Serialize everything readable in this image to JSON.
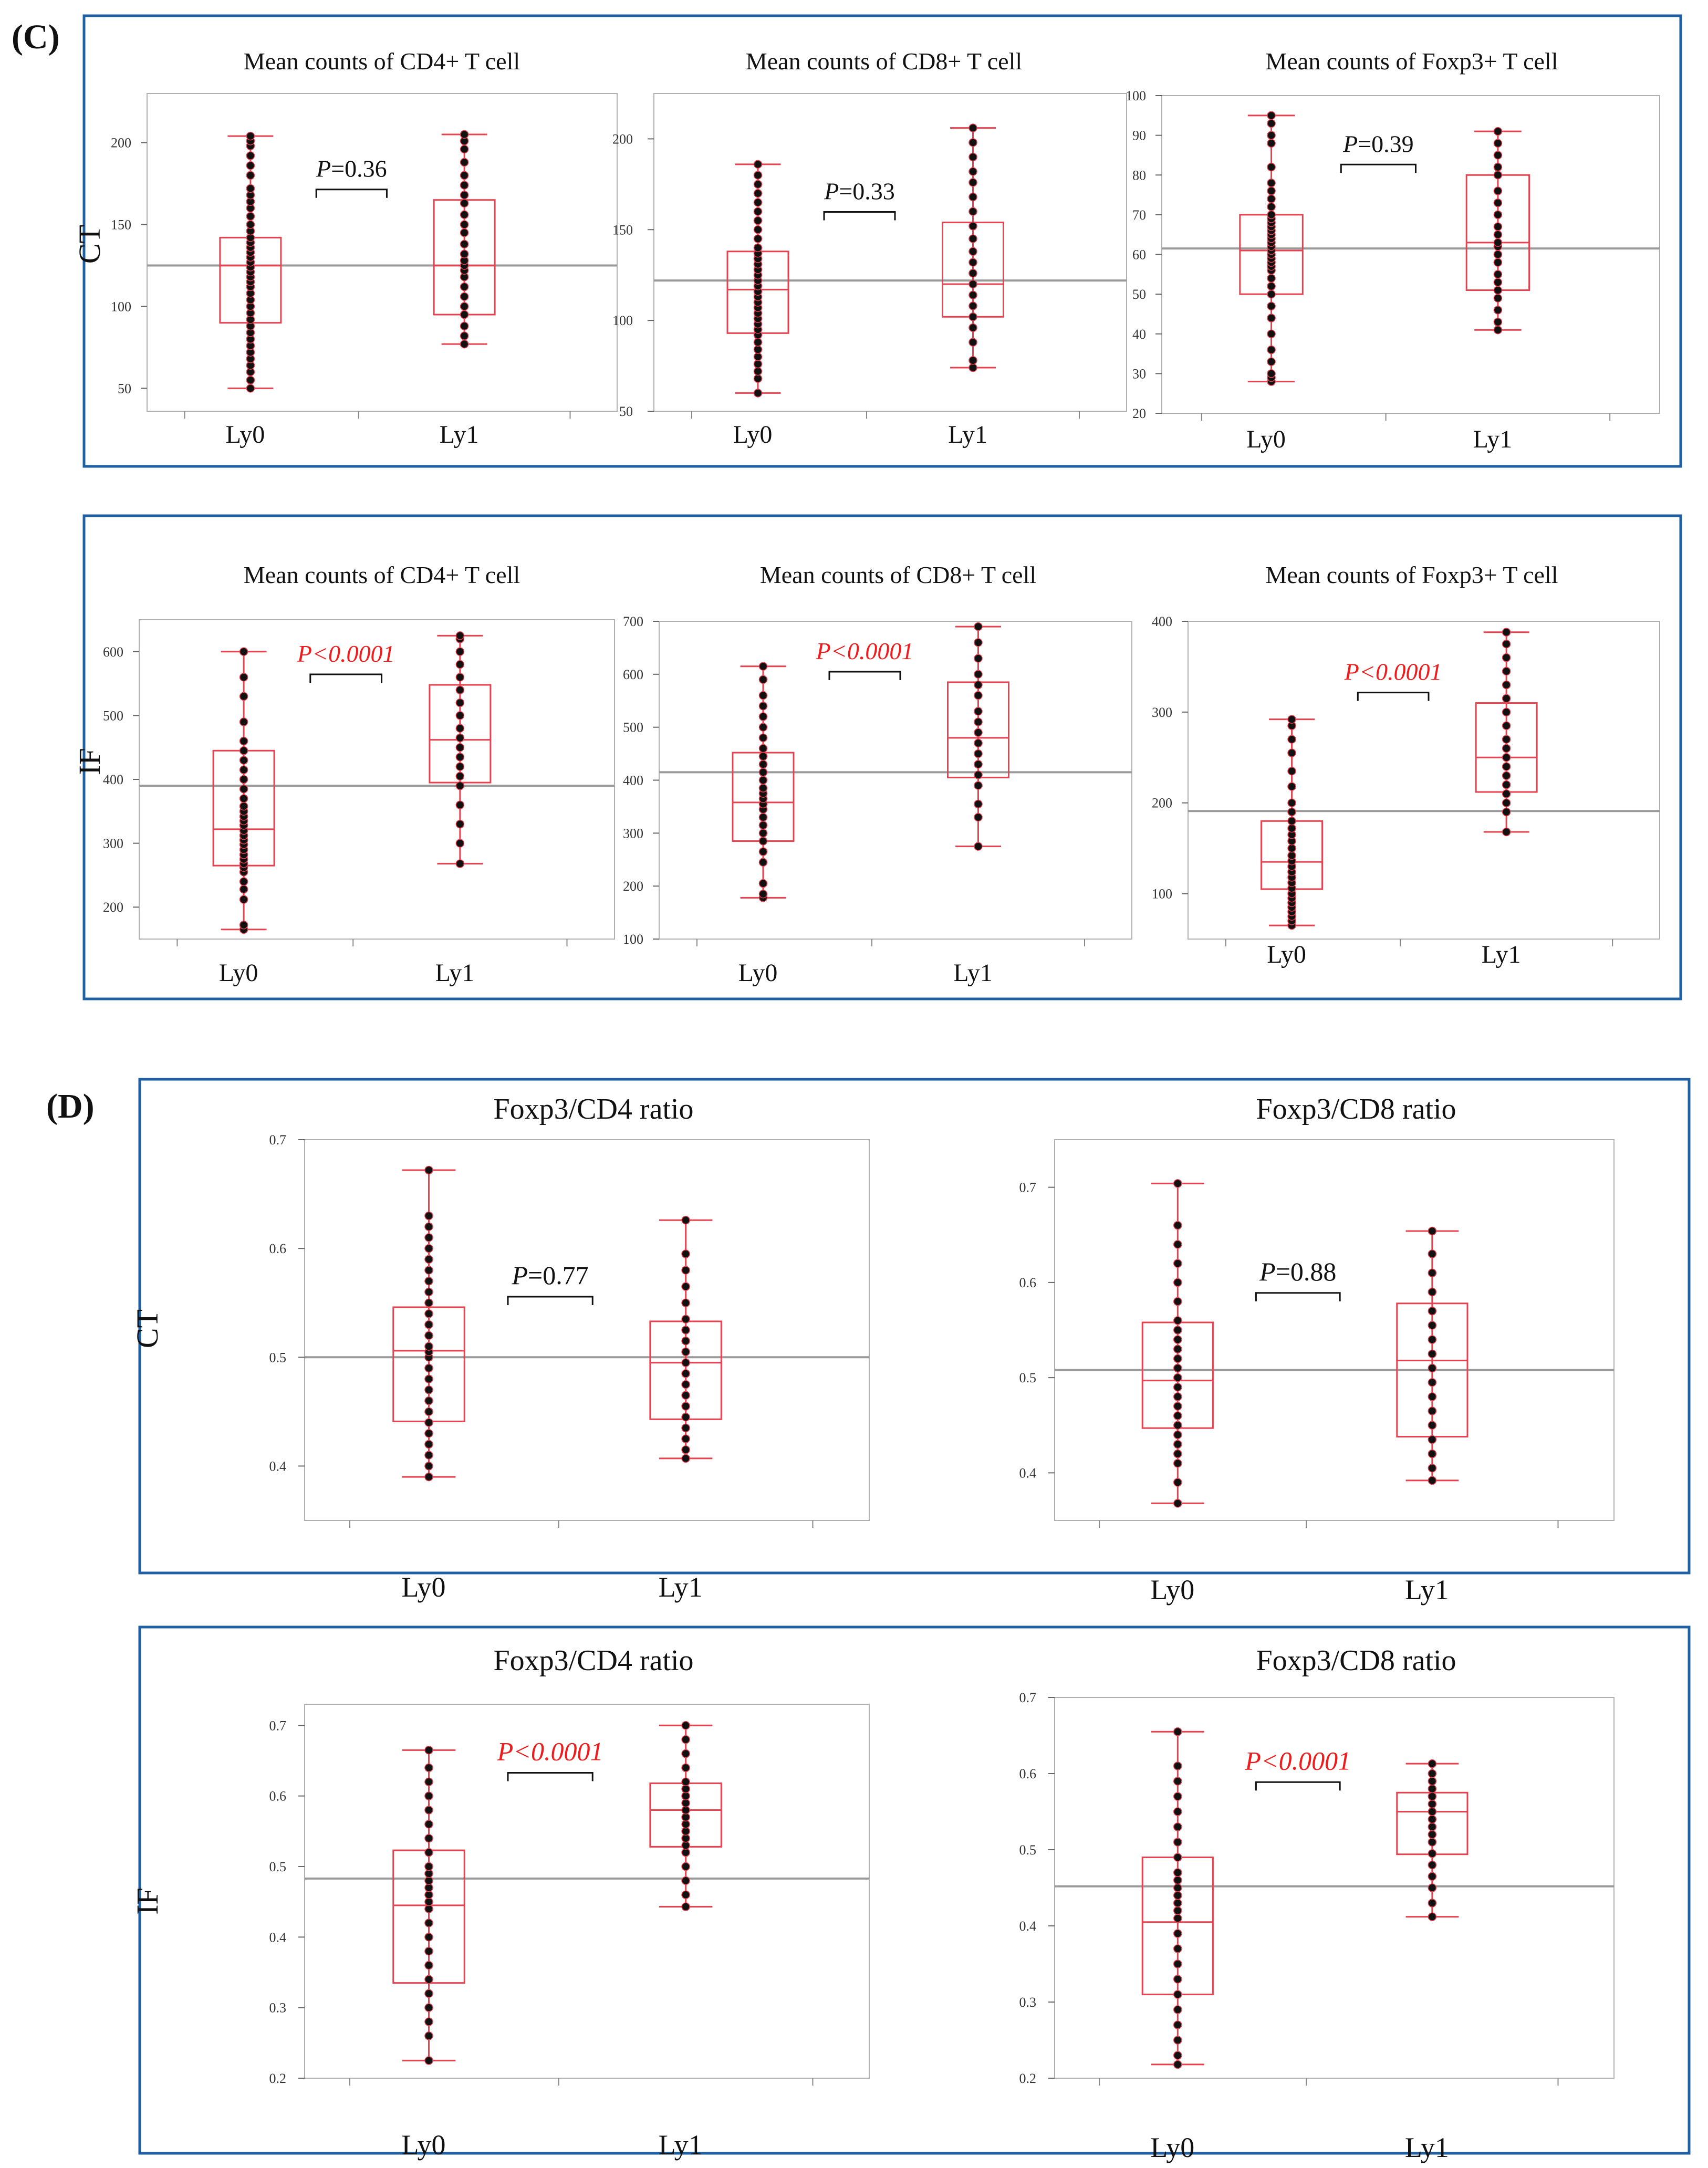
{
  "panel_labels": {
    "c": "(C)",
    "d": "(D)"
  },
  "colors": {
    "frame": "#1f5fa3",
    "box": "#e8414f",
    "dot": "#111111",
    "mean_line": "#9a9a9a",
    "axis": "#b0b0b0",
    "sig_text": "#ee1c1c"
  },
  "chart_data": [
    {
      "id": "c-ct-cd4",
      "type": "box",
      "row_label": "CT",
      "title": "Mean counts of CD4+ T cell",
      "categories": [
        "Ly0",
        "Ly1"
      ],
      "yticks": [
        50,
        100,
        150,
        200
      ],
      "ylim": [
        36,
        230
      ],
      "grand_mean": 125,
      "pvalue": {
        "italic": "P",
        "rest": "=0.36",
        "significant": false
      },
      "groups": [
        {
          "name": "Ly0",
          "min": 50,
          "q1": 90,
          "median": 125,
          "q3": 142,
          "max": 204,
          "points": [
            50,
            55,
            60,
            64,
            68,
            72,
            76,
            80,
            84,
            88,
            92,
            96,
            100,
            104,
            108,
            112,
            115,
            118,
            121,
            124,
            127,
            130,
            133,
            136,
            139,
            142,
            146,
            150,
            155,
            160,
            164,
            168,
            172,
            180,
            186,
            192,
            198,
            201,
            204
          ]
        },
        {
          "name": "Ly1",
          "min": 77,
          "q1": 95,
          "median": 125,
          "q3": 165,
          "max": 205,
          "points": [
            77,
            82,
            88,
            95,
            100,
            106,
            112,
            118,
            122,
            125,
            128,
            132,
            138,
            145,
            150,
            156,
            163,
            168,
            174,
            180,
            188,
            196,
            201,
            205
          ]
        }
      ]
    },
    {
      "id": "c-ct-cd8",
      "type": "box",
      "row_label": "",
      "title": "Mean counts of CD8+ T cell",
      "categories": [
        "Ly0",
        "Ly1"
      ],
      "yticks": [
        50,
        100,
        150,
        200
      ],
      "ylim": [
        50,
        225
      ],
      "grand_mean": 122,
      "pvalue": {
        "italic": "P",
        "rest": "=0.33",
        "significant": false
      },
      "groups": [
        {
          "name": "Ly0",
          "min": 60,
          "q1": 93,
          "median": 117,
          "q3": 138,
          "max": 186,
          "points": [
            60,
            68,
            72,
            76,
            80,
            84,
            88,
            92,
            95,
            98,
            101,
            104,
            107,
            110,
            113,
            116,
            119,
            122,
            125,
            128,
            131,
            134,
            137,
            140,
            145,
            150,
            155,
            160,
            165,
            170,
            175,
            180,
            186
          ]
        },
        {
          "name": "Ly1",
          "min": 74,
          "q1": 102,
          "median": 120,
          "q3": 154,
          "max": 206,
          "points": [
            74,
            78,
            88,
            96,
            102,
            108,
            114,
            120,
            126,
            132,
            138,
            145,
            152,
            160,
            168,
            176,
            182,
            190,
            198,
            206
          ]
        }
      ]
    },
    {
      "id": "c-ct-foxp3",
      "type": "box",
      "row_label": "",
      "title": "Mean counts of Foxp3+ T cell",
      "categories": [
        "Ly0",
        "Ly1"
      ],
      "yticks": [
        20,
        30,
        40,
        50,
        60,
        70,
        80,
        90,
        100
      ],
      "ylim": [
        20,
        100
      ],
      "grand_mean": 61.5,
      "pvalue": {
        "italic": "P",
        "rest": "=0.39",
        "significant": false
      },
      "groups": [
        {
          "name": "Ly0",
          "min": 28,
          "q1": 50,
          "median": 61,
          "q3": 70,
          "max": 95,
          "points": [
            28,
            29,
            30,
            33,
            36,
            40,
            44,
            47,
            50,
            52,
            54,
            56,
            57,
            58,
            59,
            60,
            61,
            62,
            63,
            64,
            65,
            66,
            67,
            68,
            69,
            70,
            72,
            74,
            76,
            78,
            82,
            88,
            90,
            93,
            95
          ]
        },
        {
          "name": "Ly1",
          "min": 41,
          "q1": 51,
          "median": 63,
          "q3": 80,
          "max": 91,
          "points": [
            41,
            43,
            46,
            49,
            51,
            53,
            55,
            58,
            60,
            62,
            63,
            65,
            67,
            70,
            73,
            76,
            80,
            82,
            85,
            88,
            91
          ]
        }
      ]
    },
    {
      "id": "c-if-cd4",
      "type": "box",
      "row_label": "IF",
      "title": "Mean counts of CD4+ T cell",
      "categories": [
        "Ly0",
        "Ly1"
      ],
      "yticks": [
        200,
        300,
        400,
        500,
        600
      ],
      "ylim": [
        150,
        650
      ],
      "grand_mean": 390,
      "pvalue": {
        "italic": "P",
        "rest": "<0.0001",
        "significant": true
      },
      "groups": [
        {
          "name": "Ly0",
          "min": 165,
          "q1": 265,
          "median": 322,
          "q3": 445,
          "max": 600,
          "points": [
            165,
            172,
            212,
            228,
            240,
            255,
            262,
            268,
            275,
            282,
            290,
            298,
            305,
            312,
            320,
            328,
            335,
            342,
            350,
            358,
            370,
            385,
            400,
            415,
            430,
            445,
            460,
            490,
            530,
            560,
            600
          ]
        },
        {
          "name": "Ly1",
          "min": 268,
          "q1": 395,
          "median": 462,
          "q3": 548,
          "max": 625,
          "points": [
            268,
            300,
            330,
            360,
            390,
            405,
            420,
            435,
            450,
            465,
            480,
            500,
            520,
            540,
            560,
            580,
            600,
            620,
            625
          ]
        }
      ]
    },
    {
      "id": "c-if-cd8",
      "type": "box",
      "row_label": "",
      "title": "Mean counts of CD8+ T cell",
      "categories": [
        "Ly0",
        "Ly1"
      ],
      "yticks": [
        100,
        200,
        300,
        400,
        500,
        600,
        700
      ],
      "ylim": [
        100,
        700
      ],
      "grand_mean": 415,
      "pvalue": {
        "italic": "P",
        "rest": "<0.0001",
        "significant": true
      },
      "groups": [
        {
          "name": "Ly0",
          "min": 178,
          "q1": 285,
          "median": 358,
          "q3": 452,
          "max": 615,
          "points": [
            178,
            185,
            205,
            245,
            265,
            285,
            300,
            315,
            330,
            345,
            355,
            365,
            375,
            385,
            400,
            415,
            430,
            445,
            460,
            480,
            500,
            520,
            540,
            560,
            590,
            615
          ]
        },
        {
          "name": "Ly1",
          "min": 275,
          "q1": 405,
          "median": 480,
          "q3": 585,
          "max": 690,
          "points": [
            275,
            330,
            355,
            390,
            410,
            430,
            450,
            470,
            490,
            510,
            530,
            560,
            580,
            600,
            630,
            660,
            690
          ]
        }
      ]
    },
    {
      "id": "c-if-foxp3",
      "type": "box",
      "row_label": "",
      "title": "Mean counts of Foxp3+ T cell",
      "categories": [
        "Ly0",
        "Ly1"
      ],
      "yticks": [
        100,
        200,
        300,
        400
      ],
      "ylim": [
        50,
        400
      ],
      "grand_mean": 191,
      "pvalue": {
        "italic": "P",
        "rest": "<0.0001",
        "significant": true
      },
      "groups": [
        {
          "name": "Ly0",
          "min": 65,
          "q1": 105,
          "median": 135,
          "q3": 180,
          "max": 292,
          "points": [
            65,
            70,
            75,
            80,
            85,
            90,
            95,
            100,
            106,
            112,
            118,
            124,
            130,
            136,
            142,
            150,
            158,
            165,
            172,
            180,
            190,
            200,
            218,
            235,
            255,
            270,
            285,
            292
          ]
        },
        {
          "name": "Ly1",
          "min": 168,
          "q1": 212,
          "median": 250,
          "q3": 310,
          "max": 388,
          "points": [
            168,
            190,
            200,
            210,
            220,
            230,
            240,
            250,
            260,
            270,
            285,
            300,
            315,
            330,
            345,
            360,
            375,
            388
          ]
        }
      ]
    },
    {
      "id": "d-ct-cd4",
      "type": "box",
      "row_label": "CT",
      "title": "Foxp3/CD4 ratio",
      "categories": [
        "Ly0",
        "Ly1"
      ],
      "yticks": [
        0.4,
        0.5,
        0.6,
        0.7
      ],
      "ylim": [
        0.35,
        0.7
      ],
      "grand_mean": 0.5,
      "pvalue": {
        "italic": "P",
        "rest": "=0.77",
        "significant": false
      },
      "groups": [
        {
          "name": "Ly0",
          "min": 0.39,
          "q1": 0.441,
          "median": 0.506,
          "q3": 0.546,
          "max": 0.672,
          "points": [
            0.39,
            0.4,
            0.41,
            0.42,
            0.43,
            0.44,
            0.45,
            0.46,
            0.47,
            0.48,
            0.49,
            0.5,
            0.505,
            0.51,
            0.52,
            0.53,
            0.54,
            0.55,
            0.56,
            0.57,
            0.58,
            0.59,
            0.6,
            0.61,
            0.62,
            0.63,
            0.672
          ]
        },
        {
          "name": "Ly1",
          "min": 0.407,
          "q1": 0.443,
          "median": 0.495,
          "q3": 0.533,
          "max": 0.626,
          "points": [
            0.407,
            0.415,
            0.425,
            0.435,
            0.445,
            0.455,
            0.465,
            0.475,
            0.485,
            0.495,
            0.505,
            0.515,
            0.525,
            0.535,
            0.55,
            0.565,
            0.58,
            0.595,
            0.626
          ]
        }
      ]
    },
    {
      "id": "d-ct-cd8",
      "type": "box",
      "row_label": "",
      "title": "Foxp3/CD8 ratio",
      "categories": [
        "Ly0",
        "Ly1"
      ],
      "yticks": [
        0.4,
        0.5,
        0.6,
        0.7
      ],
      "ylim": [
        0.35,
        0.75
      ],
      "grand_mean": 0.508,
      "pvalue": {
        "italic": "P",
        "rest": "=0.88",
        "significant": false
      },
      "groups": [
        {
          "name": "Ly0",
          "min": 0.368,
          "q1": 0.447,
          "median": 0.497,
          "q3": 0.558,
          "max": 0.704,
          "points": [
            0.368,
            0.39,
            0.41,
            0.42,
            0.43,
            0.44,
            0.45,
            0.46,
            0.47,
            0.48,
            0.49,
            0.5,
            0.51,
            0.52,
            0.53,
            0.54,
            0.55,
            0.56,
            0.58,
            0.6,
            0.62,
            0.64,
            0.66,
            0.704
          ]
        },
        {
          "name": "Ly1",
          "min": 0.392,
          "q1": 0.438,
          "median": 0.518,
          "q3": 0.578,
          "max": 0.654,
          "points": [
            0.392,
            0.405,
            0.42,
            0.435,
            0.45,
            0.465,
            0.48,
            0.495,
            0.51,
            0.525,
            0.54,
            0.555,
            0.57,
            0.59,
            0.61,
            0.63,
            0.654
          ]
        }
      ]
    },
    {
      "id": "d-if-cd4",
      "type": "box",
      "row_label": "IF",
      "title": "Foxp3/CD4 ratio",
      "categories": [
        "Ly0",
        "Ly1"
      ],
      "yticks": [
        0.2,
        0.3,
        0.4,
        0.5,
        0.6,
        0.7
      ],
      "ylim": [
        0.2,
        0.73
      ],
      "grand_mean": 0.483,
      "pvalue": {
        "italic": "P",
        "rest": "<0.0001",
        "significant": true
      },
      "groups": [
        {
          "name": "Ly0",
          "min": 0.225,
          "q1": 0.335,
          "median": 0.445,
          "q3": 0.523,
          "max": 0.665,
          "points": [
            0.225,
            0.26,
            0.28,
            0.3,
            0.32,
            0.34,
            0.36,
            0.38,
            0.4,
            0.42,
            0.44,
            0.45,
            0.46,
            0.47,
            0.48,
            0.49,
            0.5,
            0.52,
            0.54,
            0.56,
            0.58,
            0.6,
            0.62,
            0.64,
            0.665
          ]
        },
        {
          "name": "Ly1",
          "min": 0.443,
          "q1": 0.528,
          "median": 0.58,
          "q3": 0.618,
          "max": 0.7,
          "points": [
            0.443,
            0.46,
            0.48,
            0.5,
            0.52,
            0.53,
            0.54,
            0.55,
            0.56,
            0.57,
            0.58,
            0.59,
            0.6,
            0.61,
            0.62,
            0.64,
            0.66,
            0.68,
            0.7
          ]
        }
      ]
    },
    {
      "id": "d-if-cd8",
      "type": "box",
      "row_label": "",
      "title": "Foxp3/CD8 ratio",
      "categories": [
        "Ly0",
        "Ly1"
      ],
      "yticks": [
        0.2,
        0.3,
        0.4,
        0.5,
        0.6,
        0.7
      ],
      "ylim": [
        0.2,
        0.7
      ],
      "grand_mean": 0.452,
      "pvalue": {
        "italic": "P",
        "rest": "<0.0001",
        "significant": true
      },
      "groups": [
        {
          "name": "Ly0",
          "min": 0.218,
          "q1": 0.31,
          "median": 0.405,
          "q3": 0.49,
          "max": 0.655,
          "points": [
            0.218,
            0.23,
            0.25,
            0.27,
            0.29,
            0.31,
            0.33,
            0.35,
            0.37,
            0.39,
            0.41,
            0.42,
            0.43,
            0.44,
            0.45,
            0.46,
            0.47,
            0.49,
            0.51,
            0.53,
            0.55,
            0.57,
            0.59,
            0.61,
            0.655
          ]
        },
        {
          "name": "Ly1",
          "min": 0.412,
          "q1": 0.494,
          "median": 0.55,
          "q3": 0.575,
          "max": 0.613,
          "points": [
            0.412,
            0.43,
            0.45,
            0.465,
            0.48,
            0.495,
            0.51,
            0.52,
            0.53,
            0.54,
            0.55,
            0.56,
            0.57,
            0.58,
            0.59,
            0.6,
            0.613
          ]
        }
      ]
    }
  ]
}
